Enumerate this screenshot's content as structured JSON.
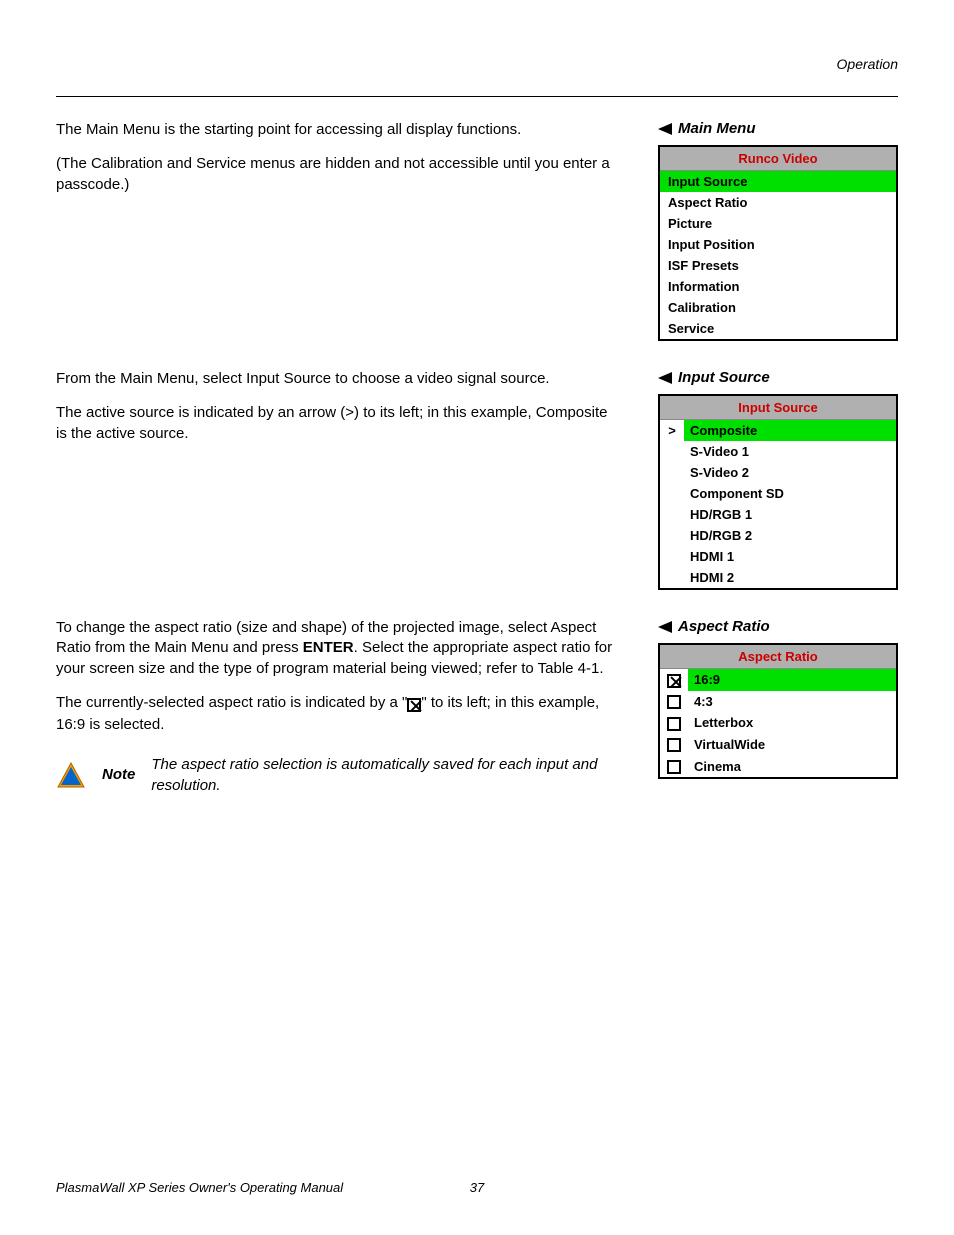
{
  "header_label": "Operation",
  "main_menu_section": {
    "caption": "Main Menu",
    "para1": "The Main Menu is the starting point for accessing all display functions.",
    "para2": "(The Calibration and Service menus are hidden and not accessible until you enter a passcode.)",
    "menu_header": "Runco Video",
    "header_bg": "#b0b0b0",
    "header_color": "#c00000",
    "highlight_bg": "#00e000",
    "items": [
      {
        "label": "Input Source",
        "highlighted": true
      },
      {
        "label": "Aspect Ratio",
        "highlighted": false
      },
      {
        "label": "Picture",
        "highlighted": false
      },
      {
        "label": "Input Position",
        "highlighted": false
      },
      {
        "label": "ISF Presets",
        "highlighted": false
      },
      {
        "label": "Information",
        "highlighted": false
      },
      {
        "label": "Calibration",
        "highlighted": false
      },
      {
        "label": "Service",
        "highlighted": false
      }
    ]
  },
  "input_source_section": {
    "caption": "Input Source",
    "para1": "From the Main Menu, select Input Source to choose a video signal source.",
    "para2": "The active source is indicated by an arrow (>) to its left; in this example, Composite is the active source.",
    "menu_header": "Input Source",
    "items": [
      {
        "label": "Composite",
        "active": true,
        "highlighted": true
      },
      {
        "label": "S-Video 1",
        "active": false,
        "highlighted": false
      },
      {
        "label": "S-Video 2",
        "active": false,
        "highlighted": false
      },
      {
        "label": "Component SD",
        "active": false,
        "highlighted": false
      },
      {
        "label": "HD/RGB 1",
        "active": false,
        "highlighted": false
      },
      {
        "label": "HD/RGB 2",
        "active": false,
        "highlighted": false
      },
      {
        "label": "HDMI 1",
        "active": false,
        "highlighted": false
      },
      {
        "label": "HDMI 2",
        "active": false,
        "highlighted": false
      }
    ]
  },
  "aspect_ratio_section": {
    "caption": "Aspect Ratio",
    "para1_pre": "To change the aspect ratio (size and shape) of the projected image, select Aspect Ratio from the Main Menu and press ",
    "para1_enter": "ENTER",
    "para1_post": ". Select the appropriate aspect ratio for your screen size and the type of program material being viewed; refer to Table 4-1.",
    "para2_pre": "The currently-selected aspect ratio is indicated by a \"",
    "para2_post": "\" to its left; in this example, 16:9 is selected.",
    "menu_header": "Aspect Ratio",
    "items": [
      {
        "label": "16:9",
        "checked": true,
        "highlighted": true
      },
      {
        "label": "4:3",
        "checked": false,
        "highlighted": false
      },
      {
        "label": "Letterbox",
        "checked": false,
        "highlighted": false
      },
      {
        "label": "VirtualWide",
        "checked": false,
        "highlighted": false
      },
      {
        "label": "Cinema",
        "checked": false,
        "highlighted": false
      }
    ],
    "note_label": "Note",
    "note_text": "The aspect ratio selection is automatically saved for each input and resolution."
  },
  "footer": {
    "title": "PlasmaWall XP Series Owner's Operating Manual",
    "page": "37"
  },
  "colors": {
    "highlight": "#00e000",
    "menu_header_bg": "#b0b0b0",
    "menu_header_text": "#c00000",
    "text": "#000000",
    "background": "#ffffff"
  }
}
